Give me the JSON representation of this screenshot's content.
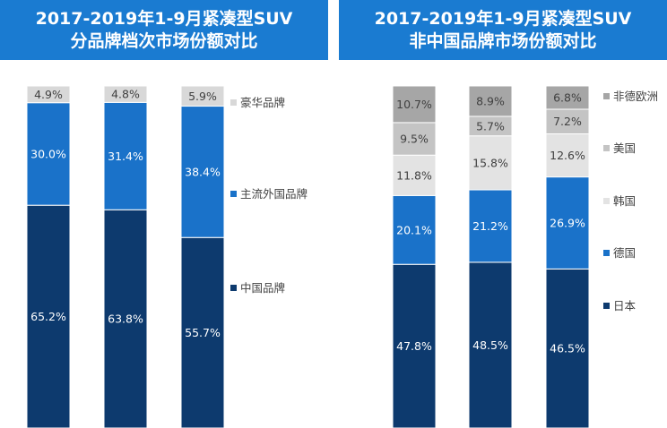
{
  "panels": [
    {
      "title_line1": "2017-2019年1-9月紧凑型SUV",
      "title_line2": "分品牌档次市场份额对比"
    },
    {
      "title_line1": "2017-2019年1-9月紧凑型SUV",
      "title_line2": "非中国品牌市场份额对比"
    }
  ],
  "colors": {
    "header_bg": "#1a7bd1",
    "dark_navy": "#0d3a6e",
    "blue": "#1a72c9",
    "light_gray": "#d8d8d8",
    "mid_gray": "#c4c4c4",
    "dark_gray": "#a6a6a6"
  },
  "chart_data": [
    {
      "type": "bar",
      "stacked": true,
      "categories": [
        "",
        "",
        ""
      ],
      "series": [
        {
          "name": "中国品牌",
          "values": [
            65.2,
            63.8,
            55.7
          ],
          "labels": [
            "65.2%",
            "63.8%",
            "55.7%"
          ],
          "color": "#0d3a6e"
        },
        {
          "name": "主流外国品牌",
          "values": [
            30.0,
            31.4,
            38.4
          ],
          "labels": [
            "30.0%",
            "31.4%",
            "38.4%"
          ],
          "color": "#1a72c9"
        },
        {
          "name": "豪华品牌",
          "values": [
            4.9,
            4.8,
            5.9
          ],
          "labels": [
            "4.9%",
            "4.8%",
            "5.9%"
          ],
          "color": "#d8d8d8"
        }
      ],
      "ylim": [
        0,
        100
      ],
      "legend_position": "right"
    },
    {
      "type": "bar",
      "stacked": true,
      "categories": [
        "",
        "",
        ""
      ],
      "series": [
        {
          "name": "日本",
          "values": [
            47.8,
            48.5,
            46.5
          ],
          "labels": [
            "47.8%",
            "48.5%",
            "46.5%"
          ],
          "color": "#0d3a6e"
        },
        {
          "name": "德国",
          "values": [
            20.1,
            21.2,
            26.9
          ],
          "labels": [
            "20.1%",
            "21.2%",
            "26.9%"
          ],
          "color": "#1a72c9"
        },
        {
          "name": "韩国",
          "values": [
            11.8,
            15.8,
            12.6
          ],
          "labels": [
            "11.8%",
            "15.8%",
            "12.6%"
          ],
          "color": "#e3e3e3"
        },
        {
          "name": "美国",
          "values": [
            9.5,
            5.7,
            7.2
          ],
          "labels": [
            "9.5%",
            "5.7%",
            "7.2%"
          ],
          "color": "#c4c4c4"
        },
        {
          "name": "非德欧洲",
          "values": [
            10.7,
            8.9,
            6.8
          ],
          "labels": [
            "10.7%",
            "8.9%",
            "6.8%"
          ],
          "color": "#a6a6a6"
        }
      ],
      "ylim": [
        0,
        100
      ],
      "legend_position": "right"
    }
  ]
}
